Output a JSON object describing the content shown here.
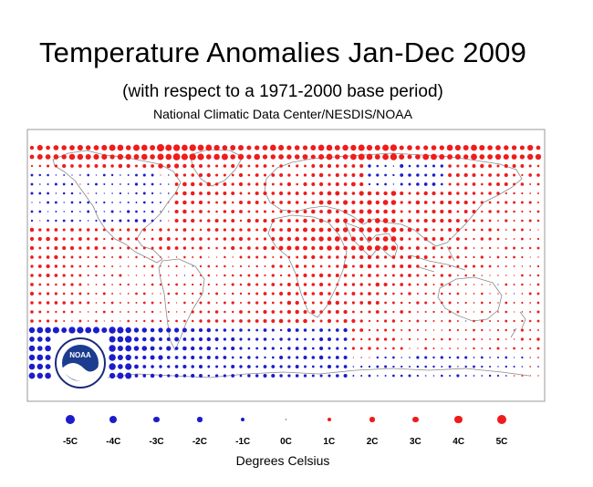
{
  "title": "Temperature Anomalies Jan-Dec 2009",
  "subtitle": "(with respect to a 1971-2000 base period)",
  "source": "National Climatic Data Center/NESDIS/NOAA",
  "logo_text": "NOAA",
  "colors": {
    "warm": "#ee1c1c",
    "cool": "#1c1ccc",
    "frame": "#999999",
    "coast": "#8a8a8a"
  },
  "legend": {
    "caption": "Degrees Celsius",
    "items": [
      {
        "label": "-5C",
        "value": -5
      },
      {
        "label": "-4C",
        "value": -4
      },
      {
        "label": "-3C",
        "value": -3
      },
      {
        "label": "-2C",
        "value": -2
      },
      {
        "label": "-1C",
        "value": -1
      },
      {
        "label": "0C",
        "value": 0
      },
      {
        "label": "1C",
        "value": 1
      },
      {
        "label": "2C",
        "value": 2
      },
      {
        "label": "3C",
        "value": 3
      },
      {
        "label": "4C",
        "value": 4
      },
      {
        "label": "5C",
        "value": 5
      }
    ]
  }
}
